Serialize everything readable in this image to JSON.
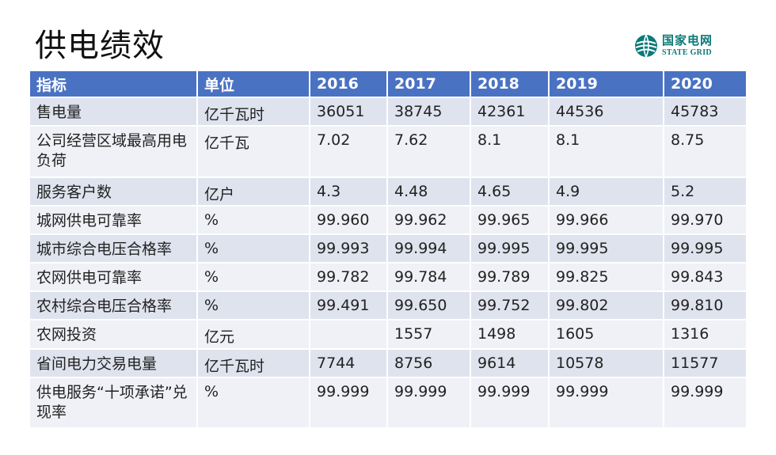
{
  "title": "供电绩效",
  "logo": {
    "cn": "国家电网",
    "en": "STATE GRID"
  },
  "table": {
    "headers": [
      "指标",
      "单位",
      "2016",
      "2017",
      "2018",
      "2019",
      "2020"
    ],
    "rows": [
      [
        "售电量",
        "亿千瓦时",
        "36051",
        "38745",
        "42361",
        "44536",
        "45783"
      ],
      [
        "公司经营区域最高用电负荷",
        "亿千瓦",
        "7.02",
        "7.62",
        "8.1",
        "8.1",
        "8.75"
      ],
      [
        "服务客户数",
        "亿户",
        "4.3",
        "4.48",
        "4.65",
        "4.9",
        "5.2"
      ],
      [
        "城网供电可靠率",
        "%",
        "99.960",
        "99.962",
        "99.965",
        "99.966",
        "99.970"
      ],
      [
        "城市综合电压合格率",
        "%",
        "99.993",
        "99.994",
        "99.995",
        "99.995",
        "99.995"
      ],
      [
        "农网供电可靠率",
        "%",
        "99.782",
        "99.784",
        "99.789",
        "99.825",
        "99.843"
      ],
      [
        "农村综合电压合格率",
        "%",
        "99.491",
        "99.650",
        "99.752",
        "99.802",
        "99.810"
      ],
      [
        "农网投资",
        "亿元",
        "",
        "1557",
        "1498",
        "1605",
        "1316"
      ],
      [
        "省间电力交易电量",
        "亿千瓦时",
        "7744",
        "8756",
        "9614",
        "10578",
        "11577"
      ],
      [
        "供电服务“十项承诺”兑现率",
        "%",
        "99.999",
        "99.999",
        "99.999",
        "99.999",
        "99.999"
      ]
    ]
  }
}
